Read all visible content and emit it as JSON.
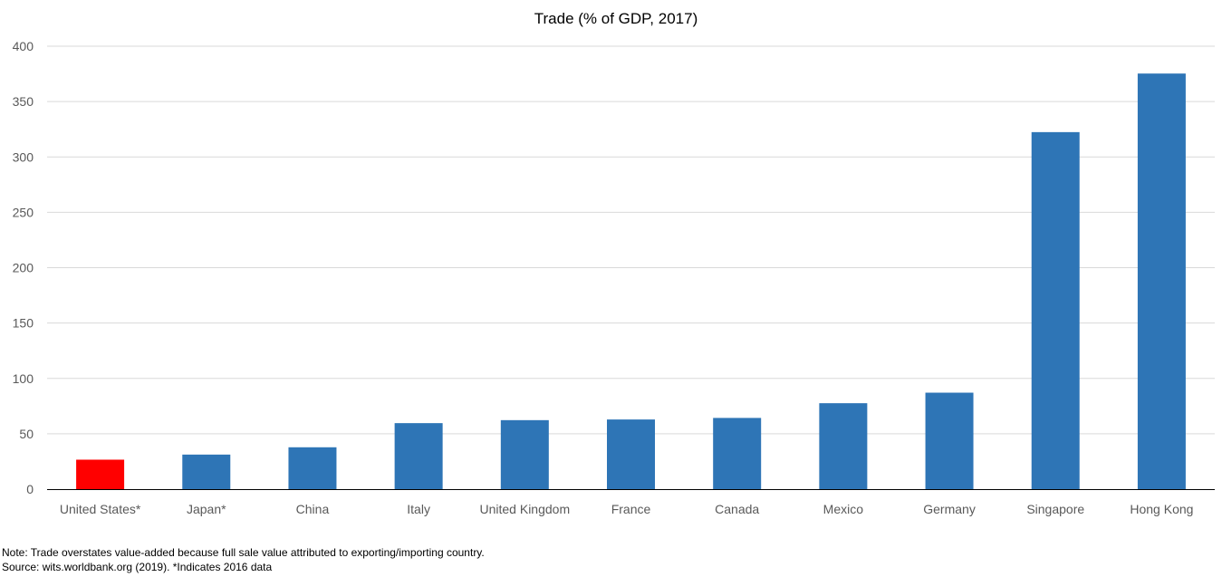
{
  "chart_data": {
    "type": "bar",
    "title": "Trade (% of GDP, 2017)",
    "xlabel": "",
    "ylabel": "",
    "categories": [
      "United States*",
      "Japan*",
      "China",
      "Italy",
      "United Kingdom",
      "France",
      "Canada",
      "Mexico",
      "Germany",
      "Singapore",
      "Hong Kong"
    ],
    "values": [
      26.6,
      31.2,
      37.8,
      59.6,
      62.3,
      62.9,
      64.3,
      77.6,
      87.1,
      322.4,
      375.3
    ],
    "ylim": [
      0,
      400
    ],
    "yticks": [
      0,
      50,
      100,
      150,
      200,
      250,
      300,
      350,
      400
    ],
    "grid": true,
    "legend": "none",
    "colors": {
      "default_bar": "#2e75b6",
      "highlight_bar": "#ff0000",
      "gridline": "#d9d9d9",
      "axis_line": "#000000",
      "tick_label": "#595959"
    },
    "highlight_index": 0
  },
  "notes": {
    "line1": "Note: Trade overstates value-added because full sale value attributed to exporting/importing country.",
    "line2": "Source: wits.worldbank.org (2019). *Indicates 2016 data"
  }
}
